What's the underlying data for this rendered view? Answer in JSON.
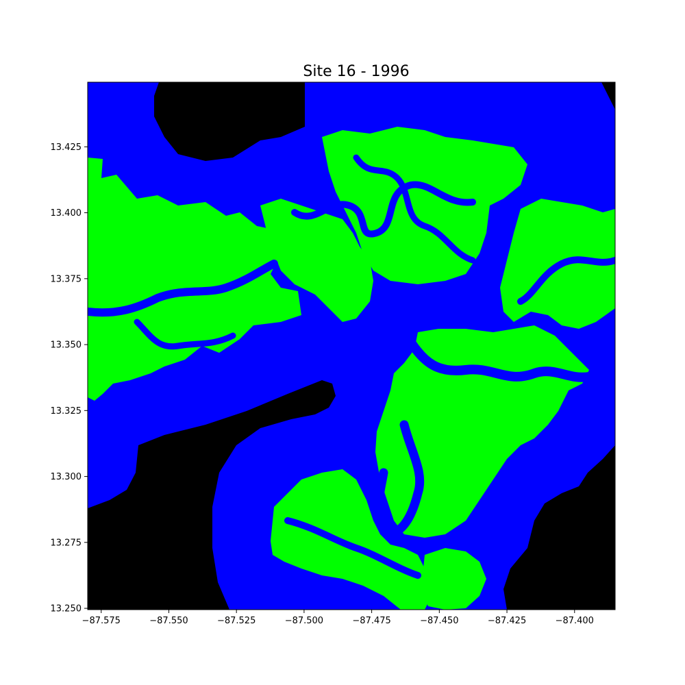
{
  "title": "Site 16 - 1996",
  "colors": {
    "water": "#0000ff",
    "vegetation": "#00ff00",
    "nodata": "#000000",
    "background": "#ffffff"
  },
  "map": {
    "x_range": [
      -87.58,
      -87.385
    ],
    "y_range": [
      13.2495,
      13.4495
    ]
  },
  "x_ticks": [
    {
      "value": -87.575,
      "label": "−87.575"
    },
    {
      "value": -87.55,
      "label": "−87.550"
    },
    {
      "value": -87.525,
      "label": "−87.525"
    },
    {
      "value": -87.5,
      "label": "−87.500"
    },
    {
      "value": -87.475,
      "label": "−87.475"
    },
    {
      "value": -87.45,
      "label": "−87.450"
    },
    {
      "value": -87.425,
      "label": "−87.425"
    },
    {
      "value": -87.4,
      "label": "−87.400"
    }
  ],
  "y_ticks": [
    {
      "value": 13.425,
      "label": "13.425"
    },
    {
      "value": 13.4,
      "label": "13.400"
    },
    {
      "value": 13.375,
      "label": "13.375"
    },
    {
      "value": 13.35,
      "label": "13.350"
    },
    {
      "value": 13.325,
      "label": "13.325"
    },
    {
      "value": 13.3,
      "label": "13.300"
    },
    {
      "value": 13.275,
      "label": "13.275"
    },
    {
      "value": 13.25,
      "label": "13.250"
    }
  ]
}
